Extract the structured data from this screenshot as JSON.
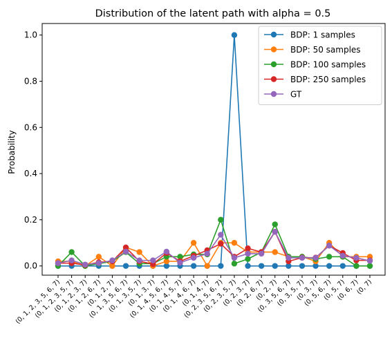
{
  "chart_data": {
    "type": "line",
    "title": "Distribution of the latent path with alpha = 0.5",
    "xlabel": "",
    "ylabel": "Probability",
    "ylim": [
      -0.04,
      1.05
    ],
    "yticks": [
      "0.0",
      "0.2",
      "0.4",
      "0.6",
      "0.8",
      "1.0"
    ],
    "ytick_values": [
      0,
      0.2,
      0.4,
      0.6,
      0.8,
      1.0
    ],
    "grid": false,
    "legend_position": "top-right",
    "categories": [
      "(0, 1, 2, 3, 5, 6, 7)",
      "(0, 1, 2, 3, 5, 7)",
      "(0, 1, 2, 3, 7)",
      "(0, 1, 2, 6, 7)",
      "(0, 1, 2, 7)",
      "(0, 1, 3, 5, 6, 7)",
      "(0, 1, 3, 5, 7)",
      "(0, 1, 3, 7)",
      "(0, 1, 4, 5, 6, 7)",
      "(0, 1, 4, 5, 7)",
      "(0, 1, 4, 6, 7)",
      "(0, 1, 4, 7)",
      "(0, 2, 3, 5, 6, 7)",
      "(0, 2, 3, 5, 7)",
      "(0, 2, 3, 7)",
      "(0, 2, 6, 7)",
      "(0, 2, 7)",
      "(0, 3, 5, 6, 7)",
      "(0, 3, 5, 7)",
      "(0, 3, 7)",
      "(0, 5, 6, 7)",
      "(0, 5, 7)",
      "(0, 6, 7)",
      "(0, 7)"
    ],
    "series": [
      {
        "name": "BDP: 1 samples",
        "color": "#1f77b4",
        "values": [
          0,
          0,
          0,
          0,
          0,
          0,
          0,
          0,
          0,
          0,
          0,
          0,
          0,
          1.0,
          0,
          0,
          0,
          0,
          0,
          0,
          0,
          0,
          0,
          0
        ]
      },
      {
        "name": "BDP: 50 samples",
        "color": "#ff7f0e",
        "values": [
          0.02,
          0.02,
          0.0,
          0.04,
          0.0,
          0.08,
          0.06,
          0.0,
          0.02,
          0.02,
          0.1,
          0.0,
          0.1,
          0.1,
          0.06,
          0.06,
          0.06,
          0.04,
          0.04,
          0.02,
          0.1,
          0.04,
          0.04,
          0.04
        ]
      },
      {
        "name": "BDP: 100 samples",
        "color": "#2ca02c",
        "values": [
          0.0,
          0.06,
          0.0,
          0.01,
          0.02,
          0.06,
          0.01,
          0.01,
          0.04,
          0.04,
          0.05,
          0.05,
          0.2,
          0.01,
          0.03,
          0.06,
          0.18,
          0.04,
          0.04,
          0.03,
          0.04,
          0.04,
          0.0,
          0.0
        ]
      },
      {
        "name": "BDP: 250 samples",
        "color": "#d62728",
        "values": [
          0.012,
          0.012,
          0.004,
          0.016,
          0.02,
          0.08,
          0.02,
          0.008,
          0.056,
          0.02,
          0.044,
          0.068,
          0.096,
          0.04,
          0.076,
          0.06,
          0.148,
          0.02,
          0.036,
          0.036,
          0.088,
          0.056,
          0.024,
          0.024
        ]
      },
      {
        "name": "GT",
        "color": "#9467bd",
        "values": [
          0.012,
          0.024,
          0.006,
          0.012,
          0.024,
          0.062,
          0.024,
          0.024,
          0.062,
          0.014,
          0.035,
          0.053,
          0.135,
          0.035,
          0.053,
          0.053,
          0.148,
          0.035,
          0.035,
          0.035,
          0.088,
          0.044,
          0.035,
          0.022
        ]
      }
    ]
  }
}
